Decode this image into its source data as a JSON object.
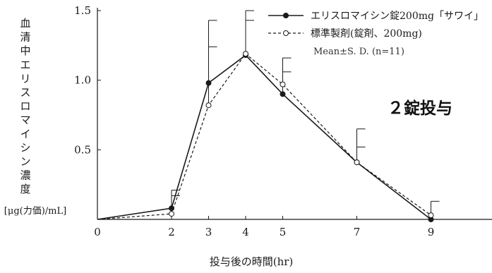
{
  "chart_data": {
    "type": "line",
    "ylabel": "血清中エリスロマイシン濃度",
    "yunit": "[μg(力価)/mL]",
    "xlabel": "投与後の時間(hr)",
    "x": [
      0,
      2,
      3,
      4,
      5,
      7,
      9
    ],
    "xticks": [
      "0",
      "2",
      "3",
      "4",
      "5",
      "7",
      "9"
    ],
    "yticks": [
      "0.5",
      "1.0",
      "1.5"
    ],
    "xlim": [
      0,
      11
    ],
    "ylim": [
      0,
      1.5
    ],
    "series": [
      {
        "name": "エリスロマイシン錠200mg「サワイ」",
        "style": "solid",
        "marker": "filled-circle",
        "values": [
          0,
          0.08,
          0.98,
          1.18,
          0.9,
          0.41,
          0.0
        ],
        "sd_upper": [
          null,
          0.21,
          1.43,
          1.43,
          1.06,
          0.52,
          null
        ]
      },
      {
        "name": "標準製剤(錠剤、200mg)",
        "style": "dashed",
        "marker": "open-circle",
        "values": [
          0,
          0.04,
          0.82,
          1.19,
          0.97,
          0.41,
          0.03
        ],
        "sd_upper": [
          null,
          0.17,
          1.24,
          1.5,
          1.16,
          0.65,
          0.13
        ]
      }
    ],
    "legend_position": "top-right",
    "legend_note": "Mean±S. D. (n=11)",
    "annotation": "２錠投与",
    "grid": false,
    "colors": {
      "line": "#1a1a1a",
      "marker_fill_open": "#ffffff",
      "annotation": "#111111"
    }
  }
}
